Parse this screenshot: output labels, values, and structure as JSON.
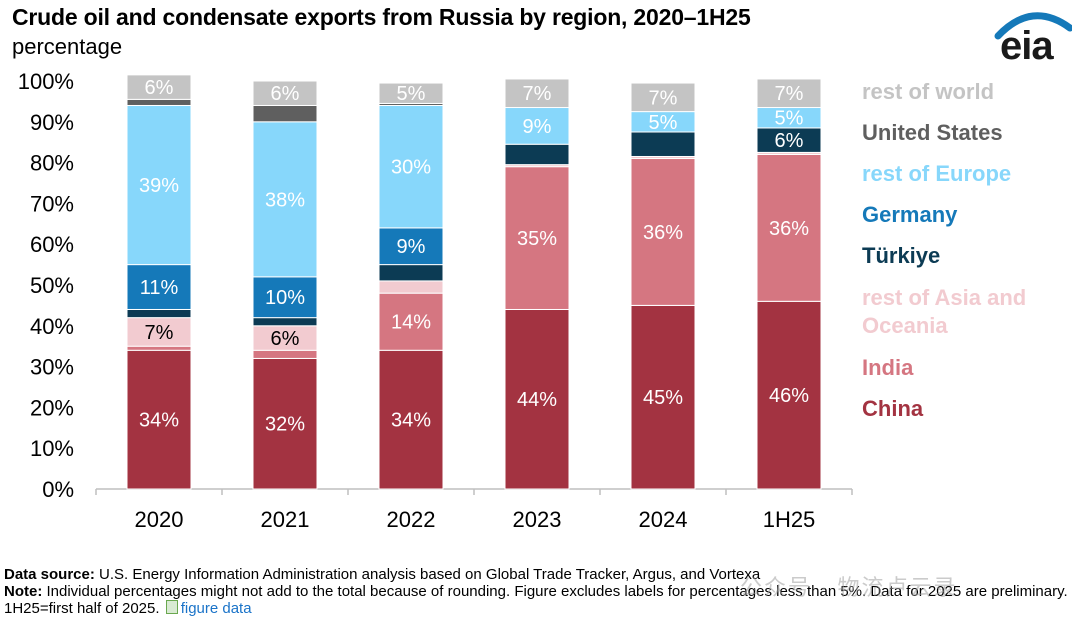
{
  "title": "Crude oil and condensate exports from Russia by region, 2020–1H25",
  "subtitle": "percentage",
  "logo_text": "eia",
  "colors": {
    "china": "#a33341",
    "india": "#d57681",
    "rest_asia": "#f2cbd0",
    "turkiye": "#0c3b54",
    "germany": "#1579b9",
    "rest_europe": "#87d7fb",
    "united_states": "#5f5f5f",
    "rest_world": "#c4c4c4",
    "axis_line": "#bfbfbf"
  },
  "chart_data": {
    "type": "bar",
    "stacked": true,
    "categories": [
      "2020",
      "2021",
      "2022",
      "2023",
      "2024",
      "1H25"
    ],
    "ylim": [
      0,
      100
    ],
    "yticks": [
      "0%",
      "10%",
      "20%",
      "30%",
      "40%",
      "50%",
      "60%",
      "70%",
      "80%",
      "90%",
      "100%"
    ],
    "series": [
      {
        "name": "China",
        "key": "china",
        "values": [
          34,
          32,
          34,
          44,
          45,
          46
        ],
        "labels": [
          "34%",
          "32%",
          "34%",
          "44%",
          "45%",
          "46%"
        ]
      },
      {
        "name": "India",
        "key": "india",
        "values": [
          1,
          2,
          14,
          35,
          36,
          36
        ],
        "labels": [
          "",
          "",
          "14%",
          "35%",
          "36%",
          "36%"
        ]
      },
      {
        "name": "rest of Asia and Oceania",
        "key": "rest_asia",
        "values": [
          7,
          6,
          3,
          0.5,
          0.5,
          0.5
        ],
        "labels": [
          "7%",
          "6%",
          "",
          "",
          "",
          ""
        ]
      },
      {
        "name": "Türkiye",
        "key": "turkiye",
        "values": [
          2,
          2,
          4,
          5,
          6,
          6
        ],
        "labels": [
          "",
          "",
          "",
          "",
          "",
          "6%"
        ]
      },
      {
        "name": "Germany",
        "key": "germany",
        "values": [
          11,
          10,
          9,
          0,
          0,
          0
        ],
        "labels": [
          "11%",
          "10%",
          "9%",
          "",
          "",
          ""
        ]
      },
      {
        "name": "rest of Europe",
        "key": "rest_europe",
        "values": [
          39,
          38,
          30,
          9,
          5,
          5
        ],
        "labels": [
          "39%",
          "38%",
          "30%",
          "9%",
          "5%",
          "5%"
        ]
      },
      {
        "name": "United States",
        "key": "united_states",
        "values": [
          1.5,
          4,
          0.5,
          0,
          0,
          0
        ],
        "labels": [
          "",
          "",
          "",
          "",
          "",
          ""
        ]
      },
      {
        "name": "rest of world",
        "key": "rest_world",
        "values": [
          6,
          6,
          5,
          7,
          7,
          7
        ],
        "labels": [
          "6%",
          "6%",
          "5%",
          "7%",
          "7%",
          "7%"
        ]
      }
    ],
    "legend": [
      "rest of world",
      "United States",
      "rest of Europe",
      "Germany",
      "Türkiye",
      "rest of Asia and Oceania",
      "India",
      "China"
    ],
    "legend_position": "right"
  },
  "footer": {
    "source_label": "Data source:",
    "source_text": "U.S. Energy Information Administration analysis based on Global Trade Tracker, Argus, and Vortexa",
    "note_label": "Note:",
    "note_text": "Individual percentages might not add to the total because of rounding. Figure excludes labels for percentages less than 5%. Data for 2025 are preliminary. 1H25=first half of 2025.",
    "link_text": "figure data"
  },
  "watermark": "公众号 · 物流卢云录"
}
